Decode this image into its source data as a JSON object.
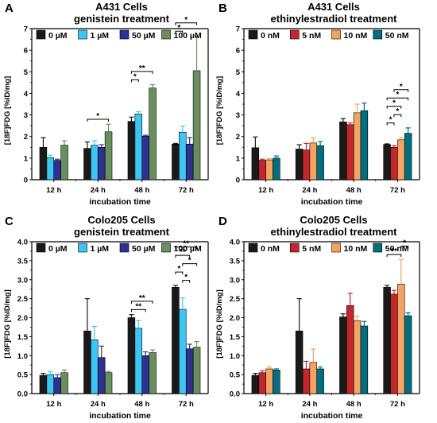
{
  "chart_data": [
    {
      "type": "bar",
      "panel": "A",
      "title": "A431 Cells",
      "subtitle": "genistein treatment",
      "xlabel": "incubation time",
      "ylabel": "[18F]FDG [%ID/mg]",
      "ylim": [
        0,
        7
      ],
      "yticks": [
        "0",
        "1",
        "2",
        "3",
        "4",
        "5",
        "6",
        "7"
      ],
      "categories": [
        "12 h",
        "24 h",
        "48 h",
        "72 h"
      ],
      "legend": "top-left",
      "series": [
        {
          "name": "0 µM",
          "color": "#1a1a1a",
          "values": [
            1.5,
            1.45,
            2.7,
            1.65
          ],
          "errors": [
            0.45,
            0.3,
            0.2,
            0.03
          ]
        },
        {
          "name": "1 µM",
          "color": "#3ec6f3",
          "values": [
            1.02,
            1.6,
            3.05,
            2.2
          ],
          "errors": [
            0.12,
            0.2,
            0.1,
            0.28
          ]
        },
        {
          "name": "50 µM",
          "color": "#2e3192",
          "values": [
            0.9,
            1.5,
            2.02,
            1.65
          ],
          "errors": [
            0.05,
            0.12,
            0.04,
            0.3
          ]
        },
        {
          "name": "100 µM",
          "color": "#6a8f5e",
          "values": [
            1.6,
            2.22,
            4.25,
            5.05
          ],
          "errors": [
            0.2,
            0.35,
            0.15,
            1.6
          ]
        }
      ],
      "significance": [
        {
          "cat": 1,
          "from": 0,
          "to": 3,
          "label": "*"
        },
        {
          "cat": 2,
          "from": 0,
          "to": 1,
          "label": "*"
        },
        {
          "cat": 2,
          "from": 0,
          "to": 3,
          "label": "**"
        },
        {
          "cat": 3,
          "from": 0,
          "to": 1,
          "label": "*"
        },
        {
          "cat": 3,
          "from": 0,
          "to": 3,
          "label": "*"
        }
      ]
    },
    {
      "type": "bar",
      "panel": "B",
      "title": "A431 Cells",
      "subtitle": "ethinylestradiol treatment",
      "xlabel": "incubation time",
      "ylabel": "[18F]FDG [%ID/mg]",
      "ylim": [
        0,
        7
      ],
      "yticks": [
        "0",
        "1",
        "2",
        "3",
        "4",
        "5",
        "6",
        "7"
      ],
      "categories": [
        "12 h",
        "24 h",
        "48 h",
        "72 h"
      ],
      "legend": "top-left",
      "series": [
        {
          "name": "0 nM",
          "color": "#1a1a1a",
          "values": [
            1.48,
            1.42,
            2.68,
            1.63
          ],
          "errors": [
            0.5,
            0.2,
            0.15,
            0.03
          ]
        },
        {
          "name": "5 nM",
          "color": "#c1272d",
          "values": [
            0.9,
            1.38,
            2.55,
            1.5
          ],
          "errors": [
            0.05,
            0.3,
            0.08,
            0.08
          ]
        },
        {
          "name": "10 nM",
          "color": "#f4a460",
          "values": [
            0.92,
            1.7,
            3.1,
            1.85
          ],
          "errors": [
            0.06,
            0.25,
            0.4,
            0.1
          ]
        },
        {
          "name": "50 nM",
          "color": "#006f7f",
          "values": [
            1.0,
            1.58,
            3.2,
            2.15
          ],
          "errors": [
            0.1,
            0.18,
            0.35,
            0.25
          ]
        }
      ],
      "significance": [
        {
          "cat": 3,
          "from": 0,
          "to": 1,
          "label": "*"
        },
        {
          "cat": 3,
          "from": 1,
          "to": 2,
          "label": "*"
        },
        {
          "cat": 3,
          "from": 0,
          "to": 2,
          "label": "*"
        },
        {
          "cat": 3,
          "from": 0,
          "to": 3,
          "label": "*"
        },
        {
          "cat": 3,
          "from": 1,
          "to": 3,
          "label": "*"
        }
      ]
    },
    {
      "type": "bar",
      "panel": "C",
      "title": "Colo205 Cells",
      "subtitle": "genistein treatment",
      "xlabel": "incubation time",
      "ylabel": "[18F]FDG [%ID/mg]",
      "ylim": [
        0,
        4
      ],
      "yticks": [
        "0.0",
        "0.5",
        "1.0",
        "1.5",
        "2.0",
        "2.5",
        "3.0",
        "3.5",
        "4.0"
      ],
      "categories": [
        "12 h",
        "24 h",
        "48 h",
        "72 h"
      ],
      "legend": "top-left",
      "series": [
        {
          "name": "0 µM",
          "color": "#1a1a1a",
          "values": [
            0.48,
            1.65,
            2.0,
            2.8
          ],
          "errors": [
            0.05,
            0.85,
            0.08,
            0.05
          ]
        },
        {
          "name": "1 µM",
          "color": "#3ec6f3",
          "values": [
            0.5,
            1.42,
            1.72,
            2.22
          ],
          "errors": [
            0.08,
            0.35,
            0.2,
            0.3
          ]
        },
        {
          "name": "50 µM",
          "color": "#2e3192",
          "values": [
            0.42,
            0.95,
            1.0,
            1.18
          ],
          "errors": [
            0.08,
            0.3,
            0.1,
            0.12
          ]
        },
        {
          "name": "100 µM",
          "color": "#6a8f5e",
          "values": [
            0.55,
            0.55,
            1.08,
            1.22
          ],
          "errors": [
            0.07,
            0.03,
            0.07,
            0.15
          ]
        }
      ],
      "significance": [
        {
          "cat": 2,
          "from": 0,
          "to": 2,
          "label": "**"
        },
        {
          "cat": 2,
          "from": 0,
          "to": 3,
          "label": "**"
        },
        {
          "cat": 3,
          "from": 1,
          "to": 2,
          "label": "*"
        },
        {
          "cat": 3,
          "from": 0,
          "to": 1,
          "label": "*"
        },
        {
          "cat": 3,
          "from": 1,
          "to": 3,
          "label": "*"
        },
        {
          "cat": 3,
          "from": 0,
          "to": 2,
          "label": "**"
        },
        {
          "cat": 3,
          "from": 0,
          "to": 3,
          "label": "**"
        }
      ]
    },
    {
      "type": "bar",
      "panel": "D",
      "title": "Colo205 Cells",
      "subtitle": "ethinylestradiol treatment",
      "xlabel": "incubation time",
      "ylabel": "[18F]FDG [%ID/mg]",
      "ylim": [
        0,
        4
      ],
      "yticks": [
        "0.0",
        "0.5",
        "1.0",
        "1.5",
        "2.0",
        "2.5",
        "3.0",
        "3.5",
        "4.0"
      ],
      "categories": [
        "12 h",
        "24 h",
        "48 h",
        "72 h"
      ],
      "legend": "top-left",
      "series": [
        {
          "name": "0 nM",
          "color": "#1a1a1a",
          "values": [
            0.48,
            1.65,
            2.02,
            2.8
          ],
          "errors": [
            0.05,
            0.85,
            0.08,
            0.05
          ]
        },
        {
          "name": "5 nM",
          "color": "#c1272d",
          "values": [
            0.55,
            0.65,
            2.32,
            2.62
          ],
          "errors": [
            0.05,
            0.2,
            0.32,
            0.1
          ]
        },
        {
          "name": "10 nM",
          "color": "#f4a460",
          "values": [
            0.65,
            0.82,
            1.92,
            2.88
          ],
          "errors": [
            0.05,
            0.35,
            0.12,
            0.65
          ]
        },
        {
          "name": "50 nM",
          "color": "#006f7f",
          "values": [
            0.62,
            0.65,
            1.78,
            2.05
          ],
          "errors": [
            0.03,
            0.05,
            0.12,
            0.08
          ]
        }
      ],
      "significance": [
        {
          "cat": 3,
          "from": 0,
          "to": 2,
          "label": "**"
        },
        {
          "cat": 3,
          "from": 2,
          "to": 3,
          "label": "*"
        }
      ]
    }
  ]
}
